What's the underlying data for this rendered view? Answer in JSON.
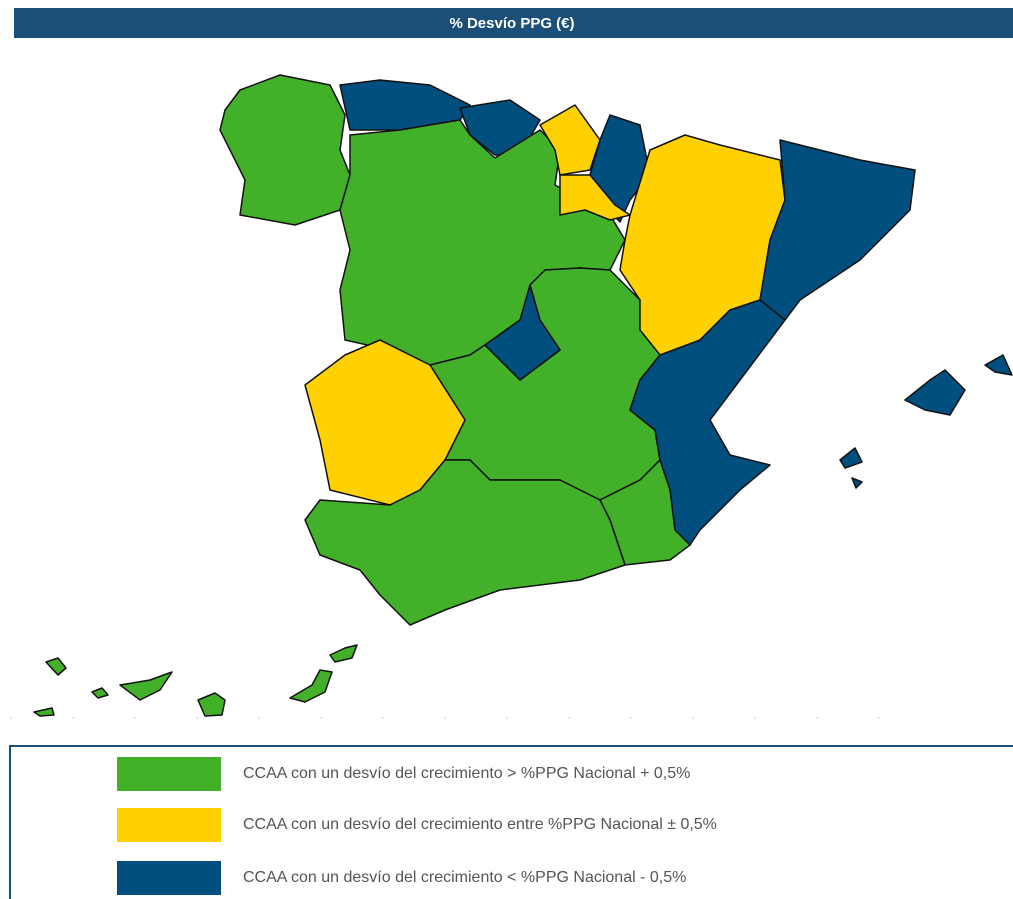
{
  "header": {
    "title": "% Desvío PPG (€)"
  },
  "legend": {
    "items": [
      {
        "label": "CCAA con un desvío del crecimiento > %PPG Nacional + 0,5%",
        "color": "#43b02a"
      },
      {
        "label": "CCAA con un desvío del crecimiento entre %PPG Nacional ± 0,5%",
        "color": "#ffd100"
      },
      {
        "label": "CCAA con un desvío del crecimiento < %PPG Nacional - 0,5%",
        "color": "#004f7e"
      }
    ]
  }
}
